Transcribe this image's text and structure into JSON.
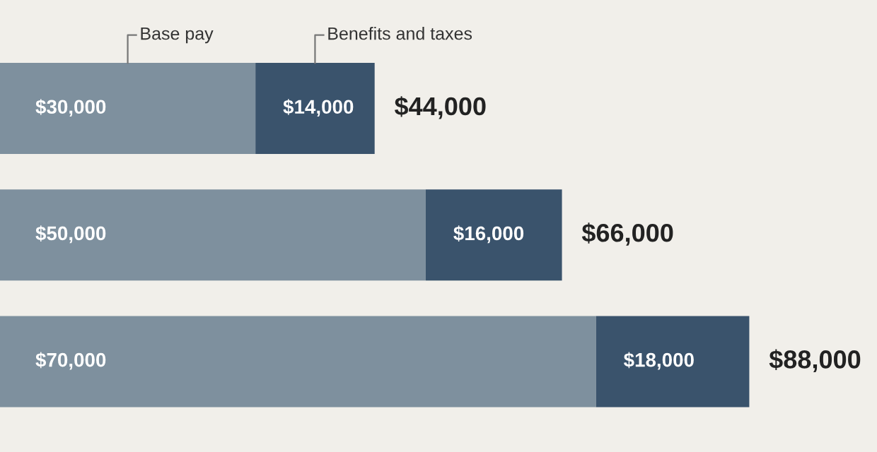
{
  "chart_data": {
    "type": "bar",
    "orientation": "horizontal",
    "stacked": true,
    "categories": [
      null,
      null,
      null
    ],
    "series": [
      {
        "name": "Base pay",
        "color": "#7e909e",
        "values": [
          30000,
          50000,
          70000
        ],
        "value_labels": [
          "$30,000",
          "$50,000",
          "$70,000"
        ]
      },
      {
        "name": "Benefits and taxes",
        "color": "#3a536c",
        "values": [
          14000,
          16000,
          18000
        ],
        "value_labels": [
          "$14,000",
          "$16,000",
          "$18,000"
        ]
      }
    ],
    "totals": [
      "$44,000",
      "$66,000",
      "$88,000"
    ],
    "xlim": [
      0,
      103000
    ]
  }
}
